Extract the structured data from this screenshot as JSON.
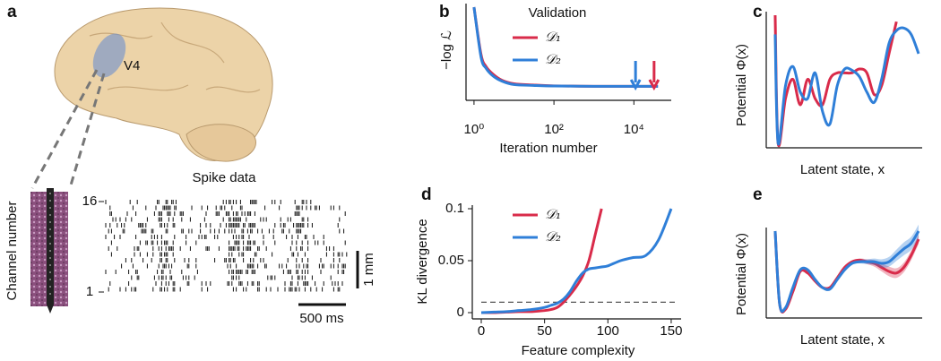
{
  "panel_a": {
    "label": "a",
    "region": "V4",
    "title": "Spike data",
    "y_label": "Channel number",
    "channel_top": "16",
    "channel_bottom": "1",
    "scale_vertical": "1 mm",
    "scale_horizontal": "500 ms"
  },
  "chart_data": [
    {
      "type": "line",
      "label": "b",
      "title": "Validation",
      "y_label": "−log ℒ",
      "x_label": "Iteration number",
      "log_x": true,
      "xlim": [
        0.7,
        70000
      ],
      "ylim": [
        0,
        1
      ],
      "xticks": [
        {
          "value": 1,
          "label": "10⁰"
        },
        {
          "value": 100,
          "label": "10²"
        },
        {
          "value": 10000,
          "label": "10⁴"
        }
      ],
      "x": [
        1,
        1.5,
        2,
        3,
        5,
        10,
        30,
        100,
        1000,
        10000,
        40000
      ],
      "series": [
        {
          "name": "𝒟₁",
          "color": "#d92b4a",
          "values": [
            1.0,
            0.45,
            0.31,
            0.22,
            0.15,
            0.11,
            0.095,
            0.085,
            0.08,
            0.08,
            0.08
          ]
        },
        {
          "name": "𝒟₂",
          "color": "#2f7fd8",
          "values": [
            1.0,
            0.42,
            0.29,
            0.2,
            0.14,
            0.1,
            0.09,
            0.083,
            0.08,
            0.08,
            0.08
          ]
        }
      ],
      "arrows": [
        {
          "x": 11000,
          "color": "#2f7fd8"
        },
        {
          "x": 32000,
          "color": "#d92b4a"
        }
      ]
    },
    {
      "type": "line",
      "label": "c",
      "y_label": "Potential Φ(x)",
      "x_label": "Latent state, x",
      "xlim": [
        0,
        1
      ],
      "ylim": [
        0,
        1
      ],
      "x": [
        0.03,
        0.05,
        0.1,
        0.15,
        0.2,
        0.25,
        0.3,
        0.35,
        0.4,
        0.45,
        0.5,
        0.55,
        0.6,
        0.65,
        0.7,
        0.75,
        0.8,
        0.85,
        0.9,
        0.95,
        1.0
      ],
      "series": [
        {
          "name": "𝒟₁",
          "color": "#d92b4a",
          "values": [
            1.0,
            0.0,
            0.35,
            0.5,
            0.3,
            0.5,
            0.35,
            0.3,
            0.5,
            0.55,
            0.55,
            0.55,
            0.58,
            0.55,
            0.38,
            0.45,
            0.7,
            0.95,
            null,
            null,
            null
          ]
        },
        {
          "name": "𝒟₂",
          "color": "#2f7fd8",
          "values": [
            0.85,
            0.0,
            0.45,
            0.6,
            0.4,
            0.35,
            0.55,
            0.25,
            0.15,
            0.45,
            0.58,
            0.57,
            0.52,
            0.4,
            0.32,
            0.5,
            0.78,
            0.88,
            0.9,
            0.85,
            0.7
          ]
        }
      ]
    },
    {
      "type": "line",
      "label": "d",
      "y_label": "KL divergence",
      "x_label": "Feature complexity",
      "xlim": [
        0,
        155
      ],
      "ylim": [
        0,
        0.1
      ],
      "xticks": [
        0,
        50,
        100,
        150
      ],
      "yticks": [
        0,
        0.05,
        0.1
      ],
      "hline": 0.01,
      "x": [
        0,
        10,
        20,
        30,
        40,
        50,
        55,
        60,
        65,
        70,
        75,
        80,
        85,
        90,
        95,
        100,
        110,
        120,
        130,
        140,
        150
      ],
      "series": [
        {
          "name": "𝒟₁",
          "color": "#d92b4a",
          "values": [
            0,
            0,
            0.0005,
            0.001,
            0.001,
            0.002,
            0.003,
            0.005,
            0.01,
            0.017,
            0.025,
            0.035,
            0.05,
            0.075,
            0.1,
            null,
            null,
            null,
            null,
            null,
            null
          ]
        },
        {
          "name": "𝒟₂",
          "color": "#2f7fd8",
          "values": [
            0,
            0.0005,
            0.001,
            0.002,
            0.003,
            0.005,
            0.007,
            0.009,
            0.013,
            0.02,
            0.03,
            0.038,
            0.042,
            0.043,
            0.044,
            0.045,
            0.05,
            0.053,
            0.055,
            0.07,
            0.1
          ]
        }
      ]
    },
    {
      "type": "line",
      "label": "e",
      "y_label": "Potential Φ(x)",
      "x_label": "Latent state, x",
      "xlim": [
        0,
        1
      ],
      "ylim": [
        0,
        1
      ],
      "x": [
        0.03,
        0.06,
        0.1,
        0.15,
        0.2,
        0.25,
        0.3,
        0.35,
        0.4,
        0.45,
        0.5,
        0.55,
        0.6,
        0.65,
        0.7,
        0.75,
        0.8,
        0.85,
        0.9,
        0.95,
        1.0
      ],
      "series": [
        {
          "name": "𝒟₁",
          "color": "#d92b4a",
          "values": [
            1.0,
            0.1,
            0.03,
            0.25,
            0.5,
            0.48,
            0.38,
            0.3,
            0.3,
            0.42,
            0.55,
            0.62,
            0.64,
            0.62,
            0.6,
            0.55,
            0.5,
            0.48,
            0.55,
            0.7,
            0.9
          ],
          "spread": [
            0,
            0,
            0,
            0,
            0,
            0,
            0,
            0,
            0,
            0,
            0,
            0.01,
            0.02,
            0.03,
            0.04,
            0.05,
            0.06,
            0.06,
            0.06,
            0.06,
            0.06
          ]
        },
        {
          "name": "𝒟₂",
          "color": "#2f7fd8",
          "values": [
            1.0,
            0.1,
            0.05,
            0.3,
            0.52,
            0.52,
            0.4,
            0.3,
            0.28,
            0.4,
            0.52,
            0.6,
            0.62,
            0.62,
            0.62,
            0.6,
            0.62,
            0.7,
            0.78,
            0.85,
            1.0
          ],
          "spread": [
            0,
            0,
            0,
            0,
            0,
            0,
            0,
            0,
            0,
            0,
            0,
            0.01,
            0.02,
            0.03,
            0.04,
            0.05,
            0.06,
            0.07,
            0.08,
            0.08,
            0.08
          ]
        }
      ]
    }
  ]
}
